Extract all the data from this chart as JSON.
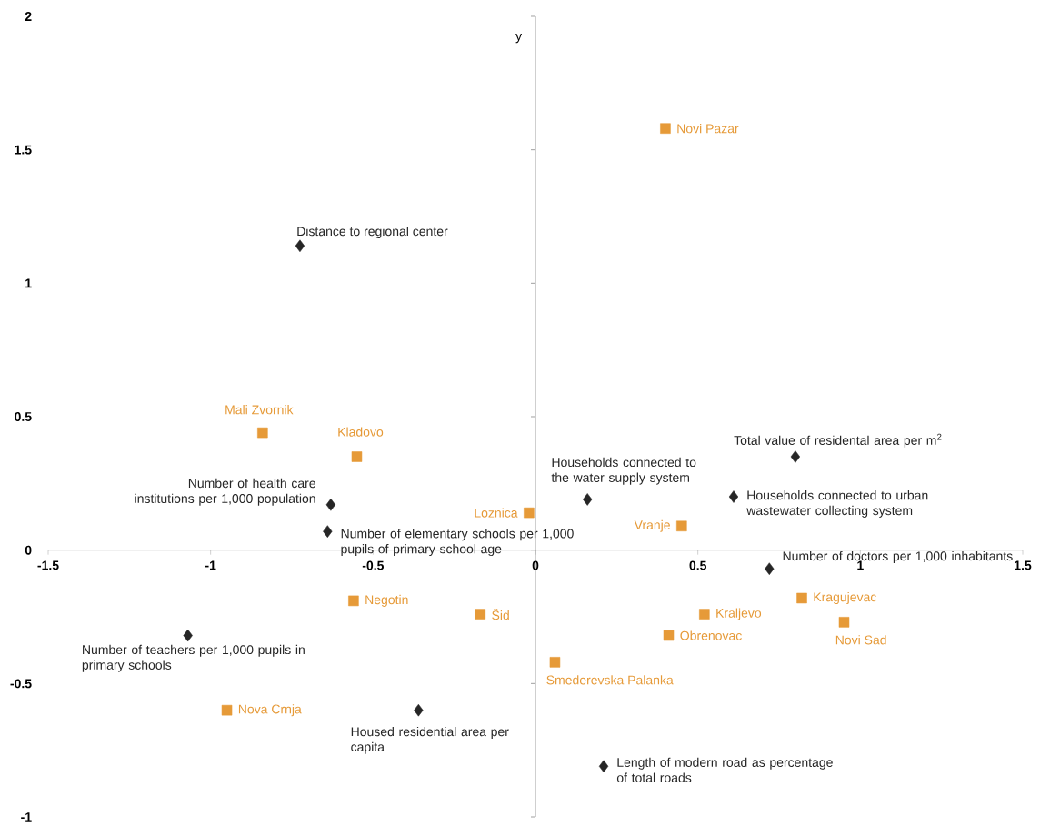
{
  "chart_data": {
    "type": "scatter",
    "ylabel": "y",
    "xlim": [
      -1.5,
      1.5
    ],
    "ylim": [
      -1,
      2
    ],
    "xticks": [
      -1.5,
      -1,
      -0.5,
      0,
      0.5,
      1,
      1.5
    ],
    "yticks": [
      -1,
      -0.5,
      0,
      0.5,
      1,
      1.5,
      2
    ],
    "series": [
      {
        "marker": "diamond",
        "color": "#262626",
        "x": [
          -0.725,
          -0.63,
          -0.64,
          0.16,
          0.8,
          0.61,
          0.72,
          -1.07,
          -0.36,
          0.21
        ],
        "values": [
          1.14,
          0.17,
          0.07,
          0.19,
          0.35,
          0.2,
          -0.07,
          -0.32,
          -0.6,
          -0.81
        ]
      },
      {
        "marker": "square",
        "color": "#e69a38",
        "x": [
          0.4,
          -0.84,
          -0.55,
          -0.02,
          0.45,
          -0.56,
          -0.17,
          0.82,
          0.52,
          0.95,
          0.41,
          0.06,
          -0.95
        ],
        "values": [
          1.58,
          0.44,
          0.35,
          0.14,
          0.09,
          -0.19,
          -0.24,
          -0.18,
          -0.24,
          -0.27,
          -0.32,
          -0.42,
          -0.6
        ]
      }
    ],
    "annotations": [
      {
        "text": "Distance to regional center",
        "x": -0.725,
        "y": 1.14
      },
      {
        "text": "Number of health care institutions per 1,000 population",
        "x": -0.63,
        "y": 0.17
      },
      {
        "text": "Number of elementary schools per 1,000 pupils of primary school age",
        "x": -0.64,
        "y": 0.07
      },
      {
        "text": "Households connected to the water supply system",
        "x": 0.16,
        "y": 0.19
      },
      {
        "text": "Total value of residental area per m$^{2}$",
        "x": 0.8,
        "y": 0.35
      },
      {
        "text": "Households connected to urban wastewater collecting system",
        "x": 0.61,
        "y": 0.2
      },
      {
        "text": "Number of doctors per 1,000 inhabitants",
        "x": 0.72,
        "y": -0.07
      },
      {
        "text": "Number of teachers per 1,000 pupils in primary schools",
        "x": -1.07,
        "y": -0.32
      },
      {
        "text": "Housed residential area per capita",
        "x": -0.36,
        "y": -0.6
      },
      {
        "text": "Length of modern road as percentage of total roads",
        "x": 0.21,
        "y": -0.81
      },
      {
        "text": "Novi Pazar",
        "x": 0.4,
        "y": 1.58
      },
      {
        "text": "Mali Zvornik",
        "x": -0.84,
        "y": 0.44
      },
      {
        "text": "Kladovo",
        "x": -0.55,
        "y": 0.35
      },
      {
        "text": "Loznica",
        "x": -0.02,
        "y": 0.14
      },
      {
        "text": "Vranje",
        "x": 0.45,
        "y": 0.09
      },
      {
        "text": "Negotin",
        "x": -0.56,
        "y": -0.19
      },
      {
        "text": "Šid",
        "x": -0.17,
        "y": -0.24
      },
      {
        "text": "Kragujevac",
        "x": 0.82,
        "y": -0.18
      },
      {
        "text": "Kraljevo",
        "x": 0.52,
        "y": -0.24
      },
      {
        "text": "Novi Sad",
        "x": 0.95,
        "y": -0.27
      },
      {
        "text": "Obrenovac",
        "x": 0.41,
        "y": -0.32
      },
      {
        "text": "Smederevska Palanka",
        "x": 0.06,
        "y": -0.42
      },
      {
        "text": "Nova Crnja",
        "x": -0.95,
        "y": -0.6
      }
    ]
  }
}
